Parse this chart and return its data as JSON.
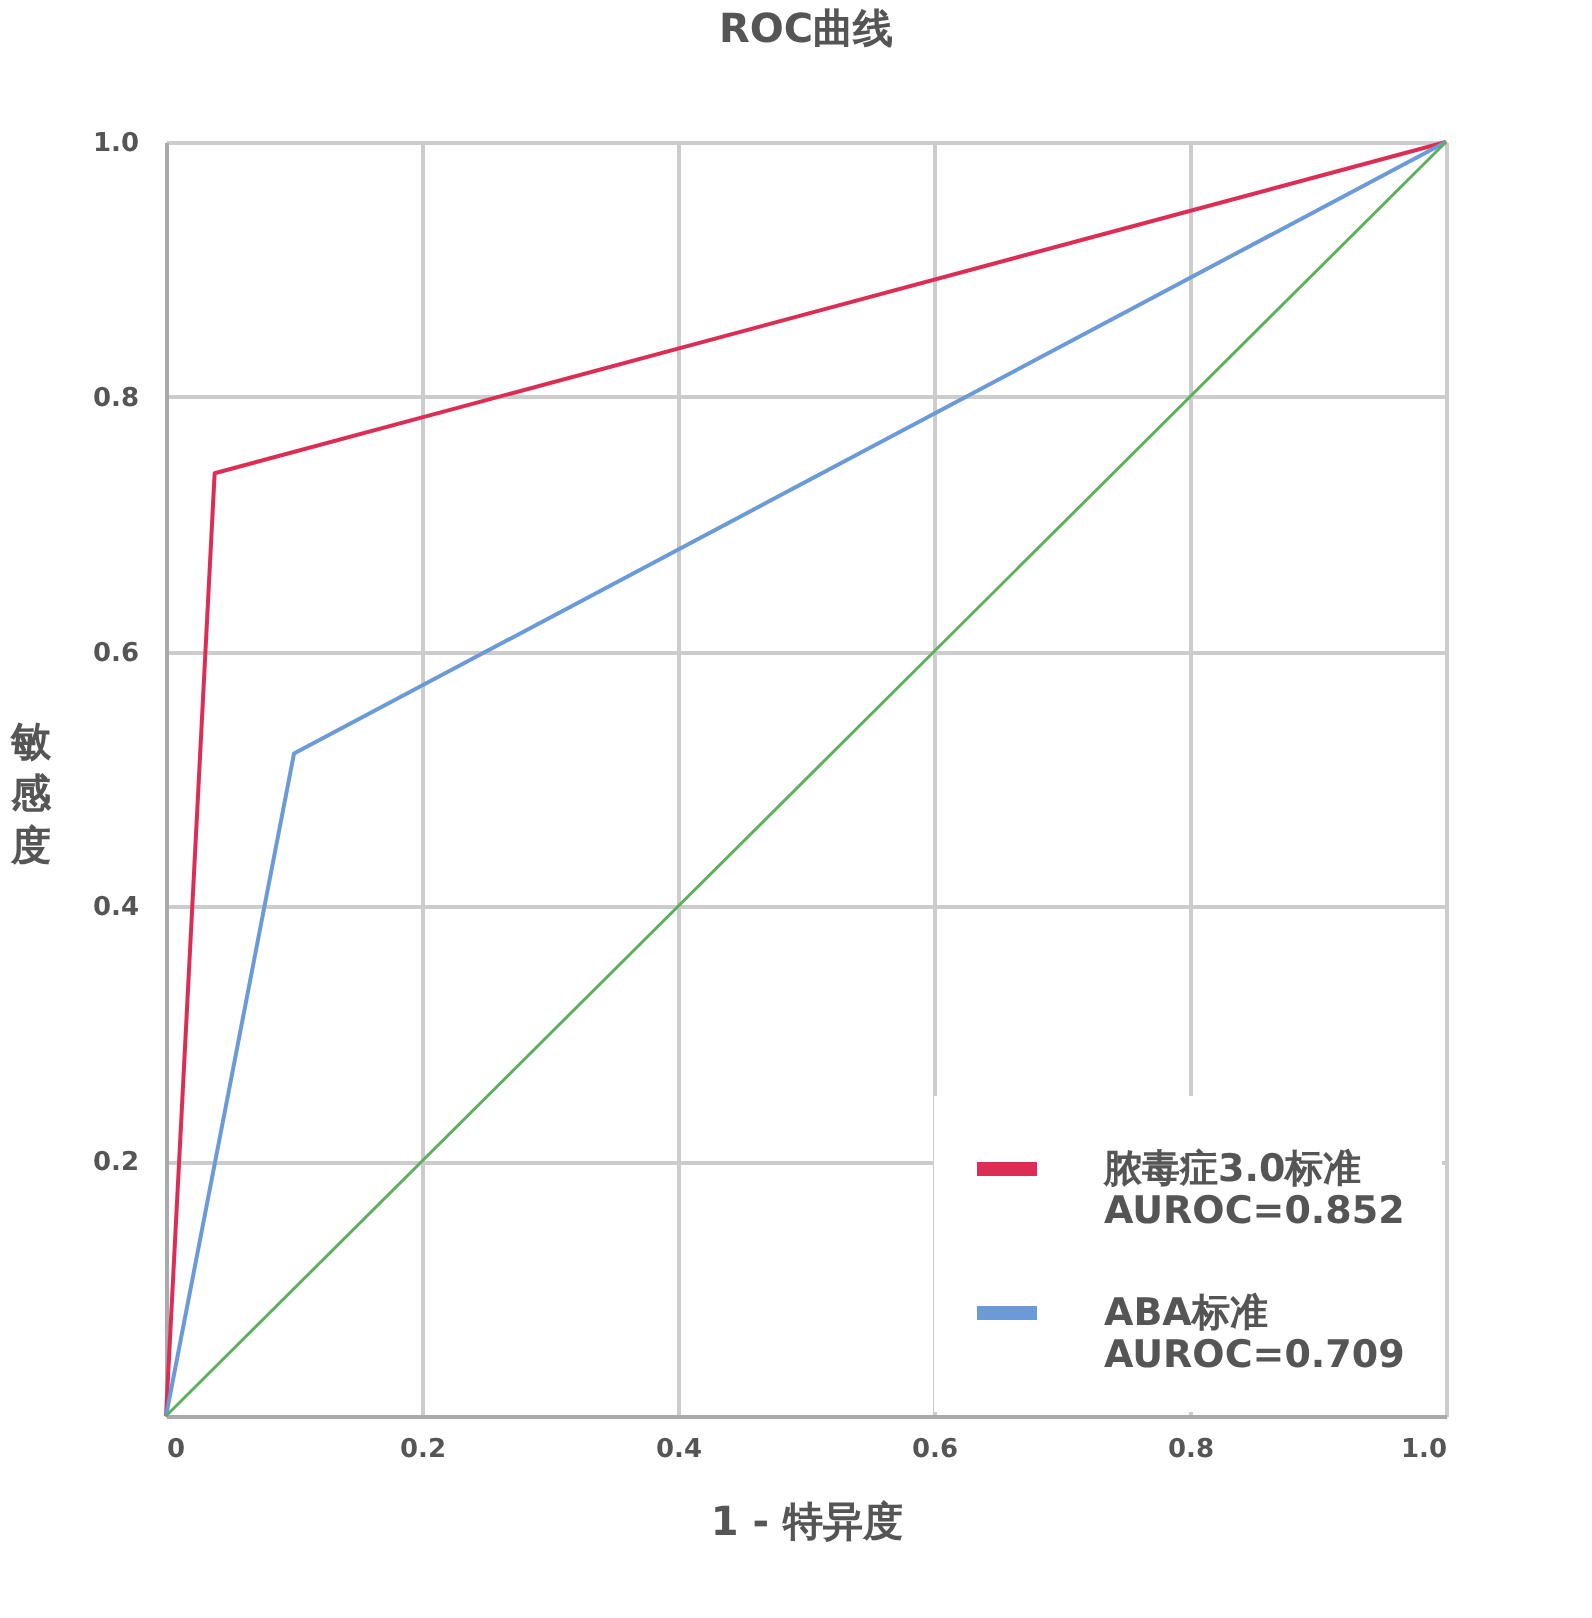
{
  "chart_data": {
    "type": "line",
    "title": "ROC曲线",
    "xlabel": "1 - 特异度",
    "ylabel": "敏感度",
    "xlim": [
      0,
      1
    ],
    "ylim": [
      0,
      1
    ],
    "xticks": [
      0,
      0.2,
      0.4,
      0.6,
      0.8,
      {
        "value": 1,
        "label": "1.0"
      }
    ],
    "yticks": [
      0.2,
      0.4,
      0.6,
      0.8,
      {
        "value": 1,
        "label": "1.0"
      }
    ],
    "grid": true,
    "legend": "bottom right",
    "marker": "none",
    "line_style": "solid",
    "series": [
      {
        "name": "脓毒症3.0标准\nAUROC=0.852",
        "color": "#dc2d55",
        "x": [
          0,
          0.038,
          1
        ],
        "values": [
          0,
          0.74,
          1
        ]
      },
      {
        "name": "ABA标准\nAUROC=0.709",
        "color": "#6a9ad8",
        "x": [
          0,
          0.1,
          1
        ],
        "values": [
          0,
          0.52,
          1
        ]
      },
      {
        "color": "#5cb05c",
        "x": [
          0,
          1
        ],
        "values": [
          0,
          1
        ]
      }
    ]
  }
}
